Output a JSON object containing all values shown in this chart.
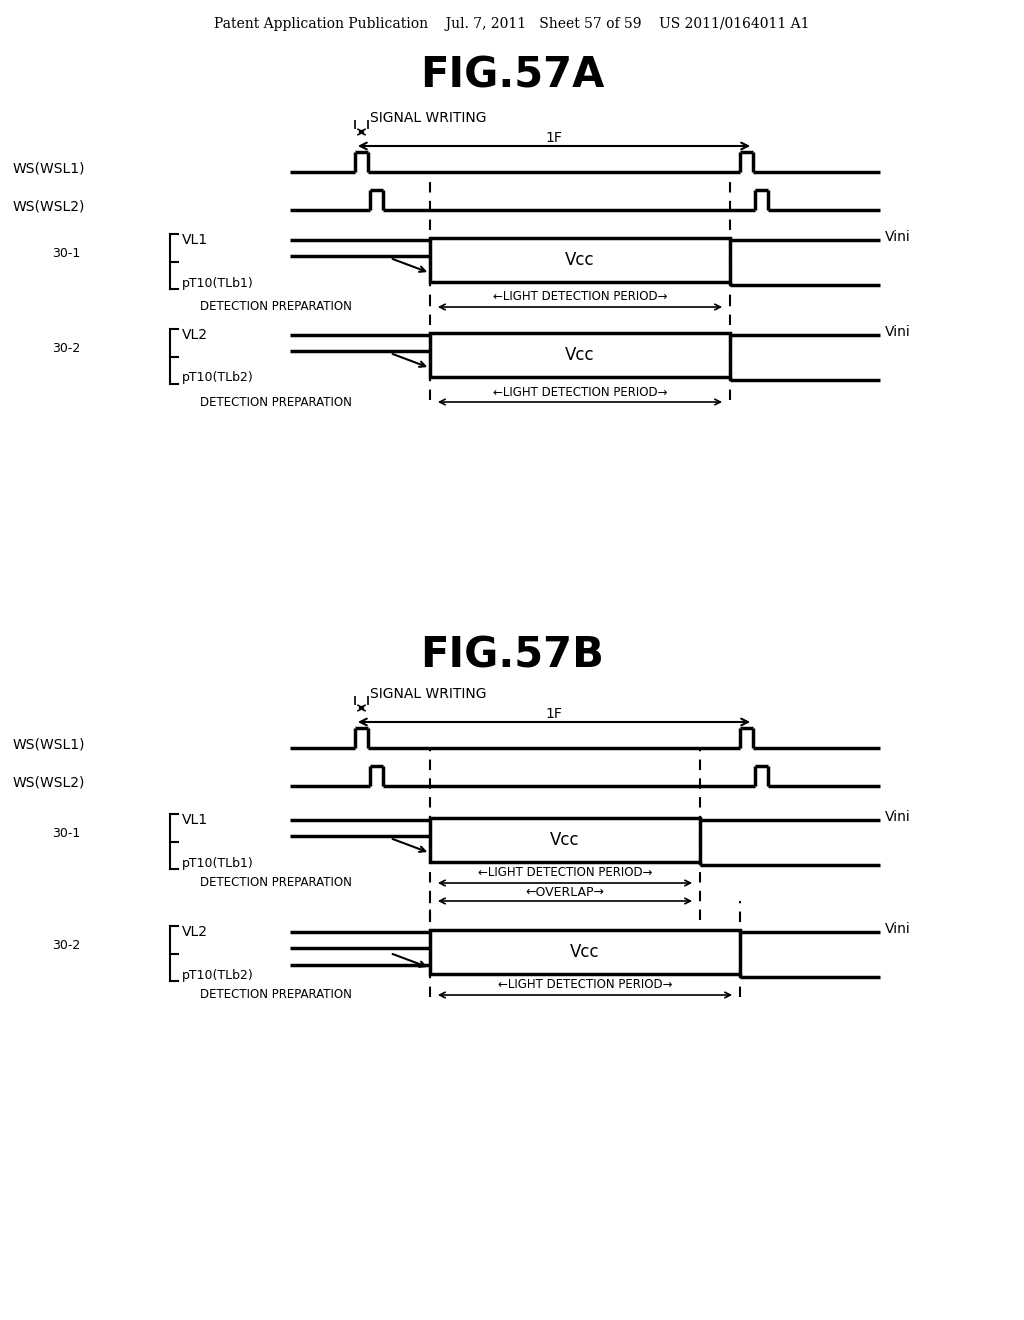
{
  "background_color": "#ffffff",
  "header": "Patent Application Publication    Jul. 7, 2011   Sheet 57 of 59    US 2011/0164011 A1",
  "figA_title": "FIG.57A",
  "figB_title": "FIG.57B",
  "sig_writing": "SIGNAL WRITING",
  "one_F": "1F",
  "wsl1": "WS(WSL1)",
  "wsl2": "WS(WSL2)",
  "vl1": "VL1",
  "vl2": "VL2",
  "pt1": "pT10(TLb1)",
  "pt2": "pT10(TLb2)",
  "vcc": "Vcc",
  "vini": "Vini",
  "grp1": "30-1",
  "grp2": "30-2",
  "det_prep": "DETECTION PREPARATION",
  "ldp": "←LIGHT DETECTION PERIOD→",
  "overlap": "←OVERLAP→"
}
